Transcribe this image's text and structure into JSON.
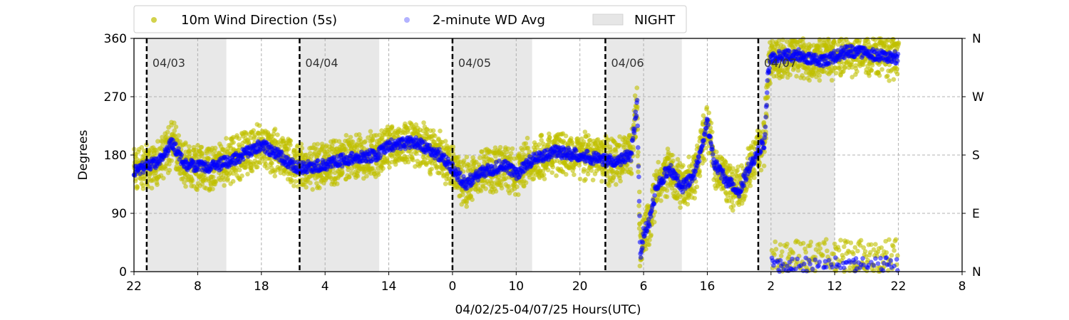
{
  "chart_data": {
    "type": "scatter",
    "xlabel": "04/02/25-04/07/25  Hours(UTC)",
    "ylabel": "Degrees",
    "ylim": [
      0,
      360
    ],
    "yticks": [
      0,
      90,
      180,
      270,
      360
    ],
    "right_tick_labels": [
      "N",
      "E",
      "S",
      "W",
      "N"
    ],
    "x_start": "04/02/25 22:00 UTC",
    "x_end": "04/08/25 08:00 UTC",
    "xtick_labels": [
      "22",
      "8",
      "18",
      "4",
      "14",
      "0",
      "10",
      "20",
      "6",
      "16",
      "2",
      "12",
      "22",
      "8"
    ],
    "grid": true,
    "legend": {
      "placement": "top-left",
      "entries": [
        {
          "label": "10m Wind Direction (5s)",
          "color": "#bfbf00",
          "marker": "circle"
        },
        {
          "label": "2-minute WD Avg",
          "color": "#0000ff",
          "marker": "circle"
        },
        {
          "label": "NIGHT",
          "color": "#e6e6e6",
          "marker": "patch"
        }
      ]
    },
    "day_markers": [
      {
        "label": "04/03",
        "time": "04/03/25 00:00"
      },
      {
        "label": "04/04",
        "time": "04/04/25 00:00"
      },
      {
        "label": "04/05",
        "time": "04/05/25 00:00"
      },
      {
        "label": "04/06",
        "time": "04/06/25 00:00"
      },
      {
        "label": "04/07",
        "time": "04/07/25 00:00"
      }
    ],
    "night_spans": [
      {
        "start": "04/03/25 00:00",
        "end": "04/03/25 12:30"
      },
      {
        "start": "04/04/25 00:00",
        "end": "04/04/25 12:30"
      },
      {
        "start": "04/05/25 00:00",
        "end": "04/05/25 12:30"
      },
      {
        "start": "04/06/25 00:00",
        "end": "04/06/25 12:00"
      },
      {
        "start": "04/07/25 00:00",
        "end": "04/07/25 12:00"
      }
    ],
    "series": [
      {
        "name": "2-minute WD Avg",
        "color": "#0000ff",
        "points": [
          {
            "t": "04/02/25 22:00",
            "deg": 155
          },
          {
            "t": "04/03/25 02:00",
            "deg": 170
          },
          {
            "t": "04/03/25 04:00",
            "deg": 200
          },
          {
            "t": "04/03/25 06:00",
            "deg": 165
          },
          {
            "t": "04/03/25 10:00",
            "deg": 160
          },
          {
            "t": "04/03/25 14:00",
            "deg": 175
          },
          {
            "t": "04/03/25 18:00",
            "deg": 195
          },
          {
            "t": "04/03/25 20:00",
            "deg": 185
          },
          {
            "t": "04/03/25 22:00",
            "deg": 170
          },
          {
            "t": "04/04/25 00:00",
            "deg": 160
          },
          {
            "t": "04/04/25 04:00",
            "deg": 165
          },
          {
            "t": "04/04/25 08:00",
            "deg": 175
          },
          {
            "t": "04/04/25 12:00",
            "deg": 180
          },
          {
            "t": "04/04/25 14:00",
            "deg": 195
          },
          {
            "t": "04/04/25 18:00",
            "deg": 200
          },
          {
            "t": "04/04/25 22:00",
            "deg": 180
          },
          {
            "t": "04/05/25 00:00",
            "deg": 160
          },
          {
            "t": "04/05/25 02:00",
            "deg": 135
          },
          {
            "t": "04/05/25 04:00",
            "deg": 150
          },
          {
            "t": "04/05/25 08:00",
            "deg": 165
          },
          {
            "t": "04/05/25 10:00",
            "deg": 150
          },
          {
            "t": "04/05/25 12:00",
            "deg": 170
          },
          {
            "t": "04/05/25 16:00",
            "deg": 185
          },
          {
            "t": "04/05/25 20:00",
            "deg": 180
          },
          {
            "t": "04/05/25 22:00",
            "deg": 175
          },
          {
            "t": "04/06/25 02:00",
            "deg": 170
          },
          {
            "t": "04/06/25 04:00",
            "deg": 180
          },
          {
            "t": "04/06/25 05:00",
            "deg": 260
          },
          {
            "t": "04/06/25 05:30",
            "deg": 20
          },
          {
            "t": "04/06/25 06:00",
            "deg": 60
          },
          {
            "t": "04/06/25 07:00",
            "deg": 80
          },
          {
            "t": "04/06/25 08:00",
            "deg": 130
          },
          {
            "t": "04/06/25 10:00",
            "deg": 160
          },
          {
            "t": "04/06/25 12:00",
            "deg": 130
          },
          {
            "t": "04/06/25 14:00",
            "deg": 150
          },
          {
            "t": "04/06/25 16:00",
            "deg": 230
          },
          {
            "t": "04/06/25 17:00",
            "deg": 170
          },
          {
            "t": "04/06/25 19:00",
            "deg": 140
          },
          {
            "t": "04/06/25 21:00",
            "deg": 125
          },
          {
            "t": "04/06/25 23:00",
            "deg": 170
          },
          {
            "t": "04/07/25 01:00",
            "deg": 200
          },
          {
            "t": "04/07/25 01:30",
            "deg": 300
          },
          {
            "t": "04/07/25 02:00",
            "deg": 330
          },
          {
            "t": "04/07/25 06:00",
            "deg": 335
          },
          {
            "t": "04/07/25 10:00",
            "deg": 325
          },
          {
            "t": "04/07/25 14:00",
            "deg": 340
          },
          {
            "t": "04/07/25 18:00",
            "deg": 335
          },
          {
            "t": "04/07/25 22:00",
            "deg": 330
          }
        ]
      }
    ]
  }
}
